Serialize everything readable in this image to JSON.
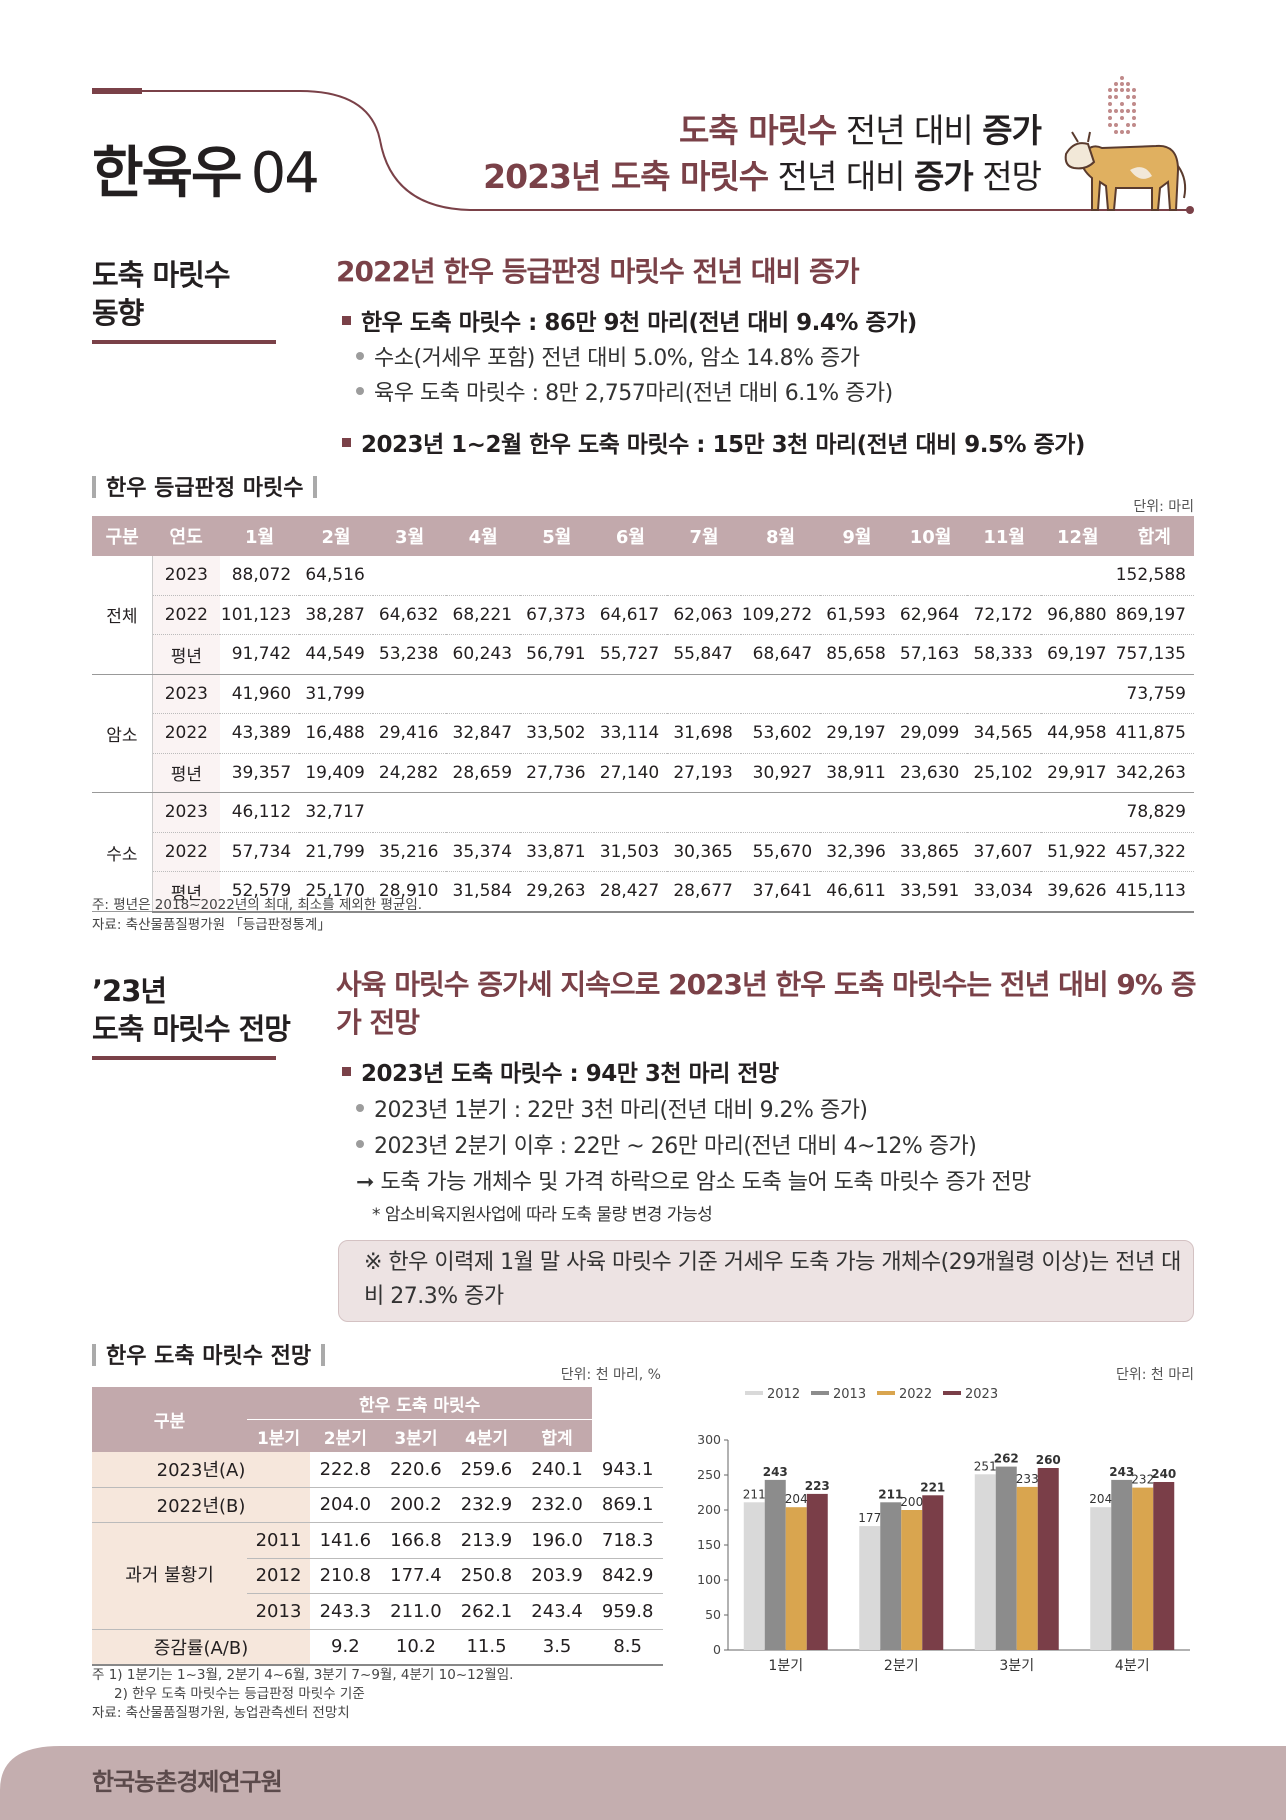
{
  "header": {
    "section_name": "한육우",
    "section_number": "04",
    "headline1": {
      "a": "도축 마릿수",
      "b": " 전년 대비 ",
      "c": "증가"
    },
    "headline2": {
      "a": "2023년 도축 마릿수",
      "b": " 전년 대비 ",
      "c": "증가",
      "d": " 전망"
    }
  },
  "section1": {
    "side_title": [
      "도축 마릿수",
      "동향"
    ],
    "title": "2022년 한우 등급판정 마릿수 전년 대비 증가",
    "bullet1": "한우 도축 마릿수 : 86만 9천 마리(전년 대비 9.4% 증가)",
    "sub1": "수소(거세우 포함) 전년 대비 5.0%, 암소 14.8% 증가",
    "sub2": "육우 도축 마릿수 : 8만 2,757마리(전년 대비 6.1% 증가)",
    "bullet2": "2023년 1~2월 한우 도축 마릿수 : 15만 3천 마리(전년 대비 9.5% 증가)"
  },
  "table1": {
    "title": "한우 등급판정 마릿수",
    "unit": "단위: 마리",
    "headers": [
      "구분",
      "연도",
      "1월",
      "2월",
      "3월",
      "4월",
      "5월",
      "6월",
      "7월",
      "8월",
      "9월",
      "10월",
      "11월",
      "12월",
      "합계"
    ],
    "groups": [
      {
        "name": "전체",
        "rows": [
          {
            "year": "2023",
            "cells": [
              "88,072",
              "64,516",
              "",
              "",
              "",
              "",
              "",
              "",
              "",
              "",
              "",
              "",
              "152,588"
            ]
          },
          {
            "year": "2022",
            "cells": [
              "101,123",
              "38,287",
              "64,632",
              "68,221",
              "67,373",
              "64,617",
              "62,063",
              "109,272",
              "61,593",
              "62,964",
              "72,172",
              "96,880",
              "869,197"
            ]
          },
          {
            "year": "평년",
            "cells": [
              "91,742",
              "44,549",
              "53,238",
              "60,243",
              "56,791",
              "55,727",
              "55,847",
              "68,647",
              "85,658",
              "57,163",
              "58,333",
              "69,197",
              "757,135"
            ]
          }
        ]
      },
      {
        "name": "암소",
        "rows": [
          {
            "year": "2023",
            "cells": [
              "41,960",
              "31,799",
              "",
              "",
              "",
              "",
              "",
              "",
              "",
              "",
              "",
              "",
              "73,759"
            ]
          },
          {
            "year": "2022",
            "cells": [
              "43,389",
              "16,488",
              "29,416",
              "32,847",
              "33,502",
              "33,114",
              "31,698",
              "53,602",
              "29,197",
              "29,099",
              "34,565",
              "44,958",
              "411,875"
            ]
          },
          {
            "year": "평년",
            "cells": [
              "39,357",
              "19,409",
              "24,282",
              "28,659",
              "27,736",
              "27,140",
              "27,193",
              "30,927",
              "38,911",
              "23,630",
              "25,102",
              "29,917",
              "342,263"
            ]
          }
        ]
      },
      {
        "name": "수소",
        "rows": [
          {
            "year": "2023",
            "cells": [
              "46,112",
              "32,717",
              "",
              "",
              "",
              "",
              "",
              "",
              "",
              "",
              "",
              "",
              "78,829"
            ]
          },
          {
            "year": "2022",
            "cells": [
              "57,734",
              "21,799",
              "35,216",
              "35,374",
              "33,871",
              "31,503",
              "30,365",
              "55,670",
              "32,396",
              "33,865",
              "37,607",
              "51,922",
              "457,322"
            ]
          },
          {
            "year": "평년",
            "cells": [
              "52,579",
              "25,170",
              "28,910",
              "31,584",
              "29,263",
              "28,427",
              "28,677",
              "37,641",
              "46,611",
              "33,591",
              "33,034",
              "39,626",
              "415,113"
            ]
          }
        ]
      }
    ],
    "note1": "주: 평년은 2018~2022년의 최대, 최소를 제외한 평균임.",
    "note2": "자료: 축산물품질평가원 「등급판정통계」"
  },
  "section2": {
    "side_title": [
      "’23년",
      "도축 마릿수 전망"
    ],
    "title": "사육 마릿수 증가세 지속으로 2023년 한우 도축 마릿수는 전년 대비 9% 증가 전망",
    "bullet1": "2023년 도축 마릿수 : 94만 3천 마리 전망",
    "sub1": "2023년 1분기 : 22만 3천 마리(전년 대비 9.2% 증가)",
    "sub2": "2023년 2분기 이후 : 22만 ~ 26만 마리(전년 대비 4~12% 증가)",
    "arrow": "도축 가능 개체수 및 가격 하락으로 암소 도축 늘어 도축 마릿수 증가 전망",
    "star": "* 암소비육지원사업에 따라 도축 물량 변경 가능성",
    "callout": "※ 한우 이력제 1월 말 사육 마릿수 기준 거세우 도축 가능 개체수(29개월령 이상)는 전년 대비 27.3% 증가"
  },
  "table2": {
    "title": "한우 도축 마릿수 전망",
    "unit": "단위: 천 마리, %",
    "head_group": "구분",
    "head_span": "한우 도축 마릿수",
    "quarters": [
      "1분기",
      "2분기",
      "3분기",
      "4분기",
      "합계"
    ],
    "rows": [
      {
        "label": "2023년(A)",
        "cells": [
          "222.8",
          "220.6",
          "259.6",
          "240.1",
          "943.1"
        ]
      },
      {
        "label": "2022년(B)",
        "cells": [
          "204.0",
          "200.2",
          "232.9",
          "232.0",
          "869.1"
        ]
      }
    ],
    "past_label": "과거 불황기",
    "past_rows": [
      {
        "year": "2011",
        "cells": [
          "141.6",
          "166.8",
          "213.9",
          "196.0",
          "718.3"
        ]
      },
      {
        "year": "2012",
        "cells": [
          "210.8",
          "177.4",
          "250.8",
          "203.9",
          "842.9"
        ]
      },
      {
        "year": "2013",
        "cells": [
          "243.3",
          "211.0",
          "262.1",
          "243.4",
          "959.8"
        ]
      }
    ],
    "rate_row": {
      "label": "증감률(A/B)",
      "cells": [
        "9.2",
        "10.2",
        "11.5",
        "3.5",
        "8.5"
      ]
    },
    "note1": "주  1) 1분기는 1~3월, 2분기 4~6월, 3분기 7~9월, 4분기 10~12월임.",
    "note2": "2) 한우 도축 마릿수는 등급판정 마릿수 기준",
    "note3": "자료: 축산물품질평가원, 농업관측센터 전망치"
  },
  "chart_data": {
    "type": "bar",
    "unit": "단위: 천 마리",
    "categories": [
      "1분기",
      "2분기",
      "3분기",
      "4분기"
    ],
    "series": [
      {
        "name": "2012",
        "color": "#d9d9d9",
        "values": [
          211,
          177,
          251,
          204
        ]
      },
      {
        "name": "2013",
        "color": "#8c8c8c",
        "values": [
          243,
          211,
          262,
          243
        ]
      },
      {
        "name": "2022",
        "color": "#d9a54f",
        "values": [
          204,
          200,
          233,
          232
        ]
      },
      {
        "name": "2023",
        "color": "#7a3e48",
        "values": [
          223,
          221,
          260,
          240
        ]
      }
    ],
    "ylim": [
      0,
      300
    ],
    "yticks": [
      0,
      50,
      100,
      150,
      200,
      250,
      300
    ],
    "legend": "top"
  },
  "footer": {
    "org": "한국농촌경제연구원"
  },
  "colors": {
    "accent": "#7a4148",
    "table_head": "#c2a9ac",
    "footer": "#c4aeaf",
    "callout_bg": "#ede3e3"
  }
}
